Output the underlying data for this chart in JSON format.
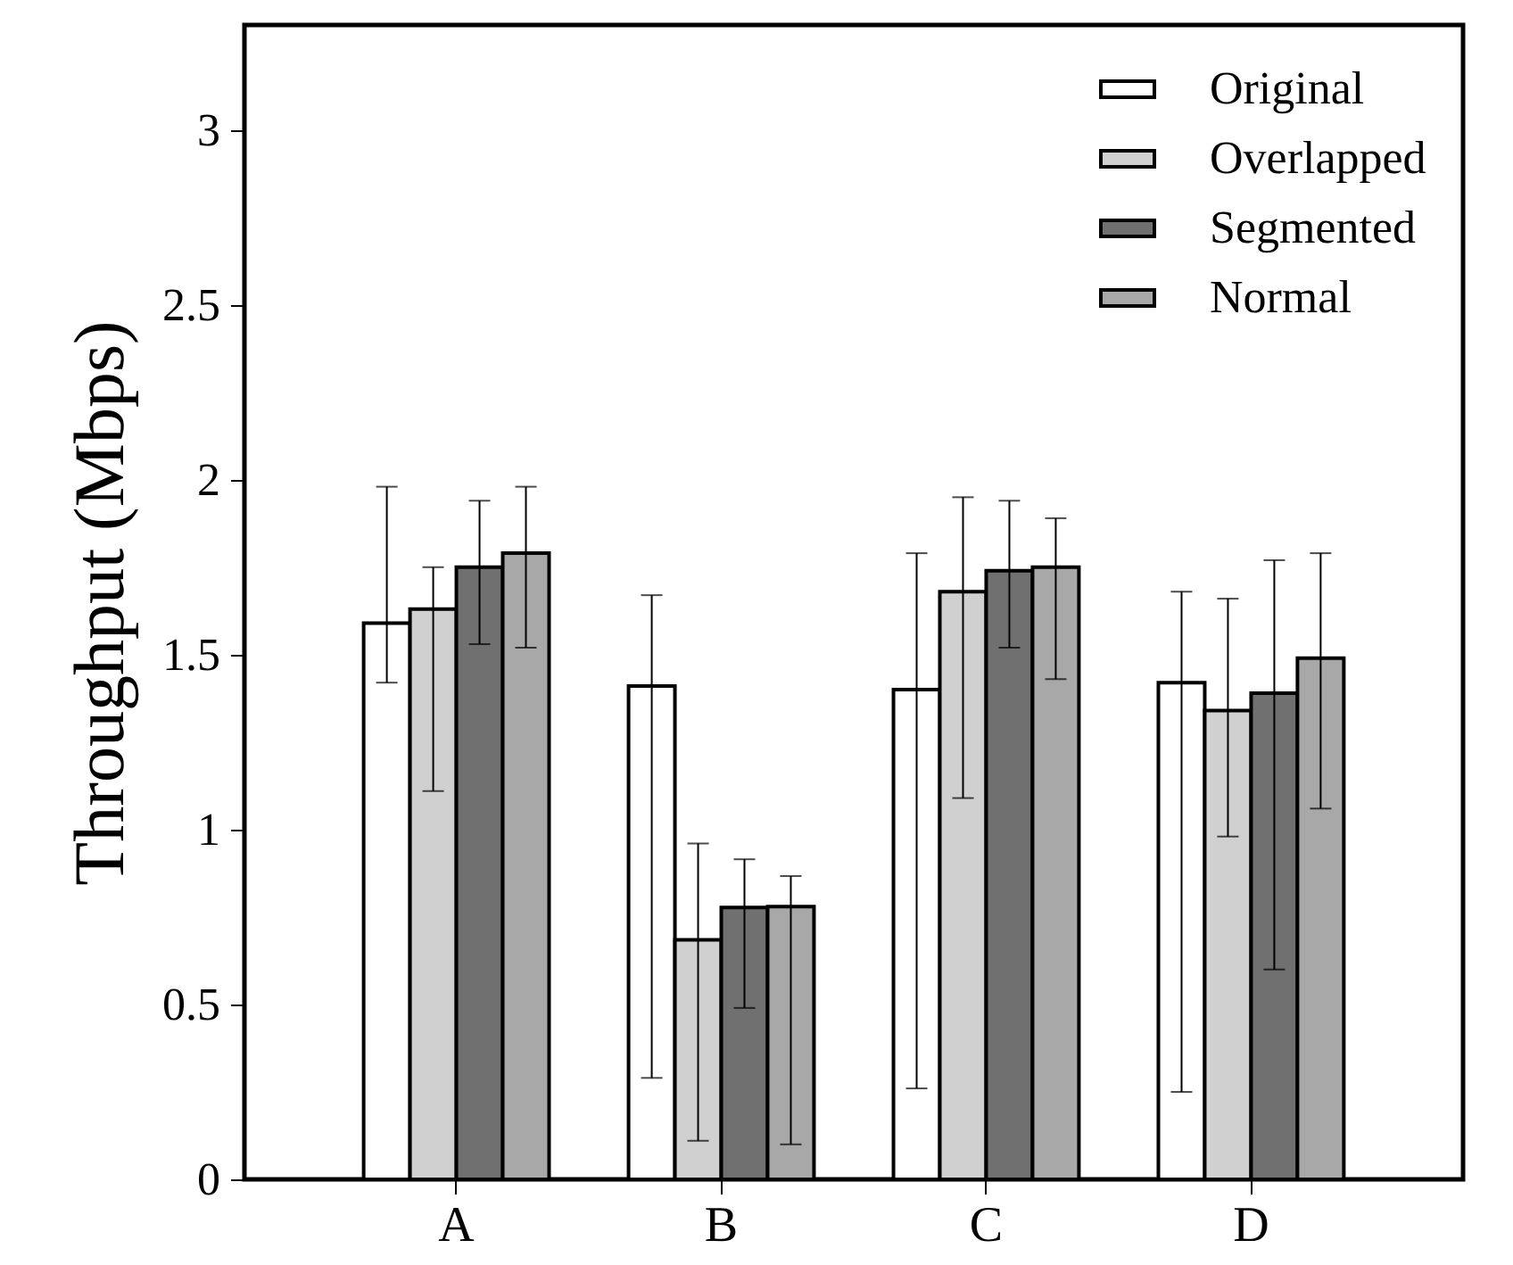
{
  "chart_data": {
    "type": "bar",
    "ylabel": "Throughput (Mbps)",
    "categories": [
      "A",
      "B",
      "C",
      "D"
    ],
    "ylim": [
      0,
      3.3
    ],
    "yticks": [
      0,
      0.5,
      1,
      1.5,
      2,
      2.5,
      3
    ],
    "legend": "top right",
    "grid": false,
    "series": [
      {
        "name": "Original",
        "color": "#ffffff",
        "values": [
          1.59,
          1.41,
          1.4,
          1.42
        ],
        "errors": [
          [
            1.42,
            1.98
          ],
          [
            0.29,
            1.67
          ],
          [
            0.26,
            1.79
          ],
          [
            0.25,
            1.68
          ]
        ]
      },
      {
        "name": "Overlapped",
        "color": "#d0d0d0",
        "values": [
          1.63,
          0.685,
          1.68,
          1.34
        ],
        "errors": [
          [
            1.11,
            1.75
          ],
          [
            0.11,
            0.96
          ],
          [
            1.09,
            1.95
          ],
          [
            0.98,
            1.66
          ]
        ]
      },
      {
        "name": "Segmented",
        "color": "#707070",
        "values": [
          1.75,
          0.777,
          1.74,
          1.39
        ],
        "errors": [
          [
            1.53,
            1.94
          ],
          [
            0.49,
            0.915
          ],
          [
            1.52,
            1.94
          ],
          [
            0.6,
            1.77
          ]
        ]
      },
      {
        "name": "Normal",
        "color": "#a8a8a8",
        "values": [
          1.79,
          0.78,
          1.75,
          1.49
        ],
        "errors": [
          [
            1.52,
            1.98
          ],
          [
            0.1,
            0.867
          ],
          [
            1.43,
            1.89
          ],
          [
            1.06,
            1.79
          ]
        ]
      }
    ]
  }
}
